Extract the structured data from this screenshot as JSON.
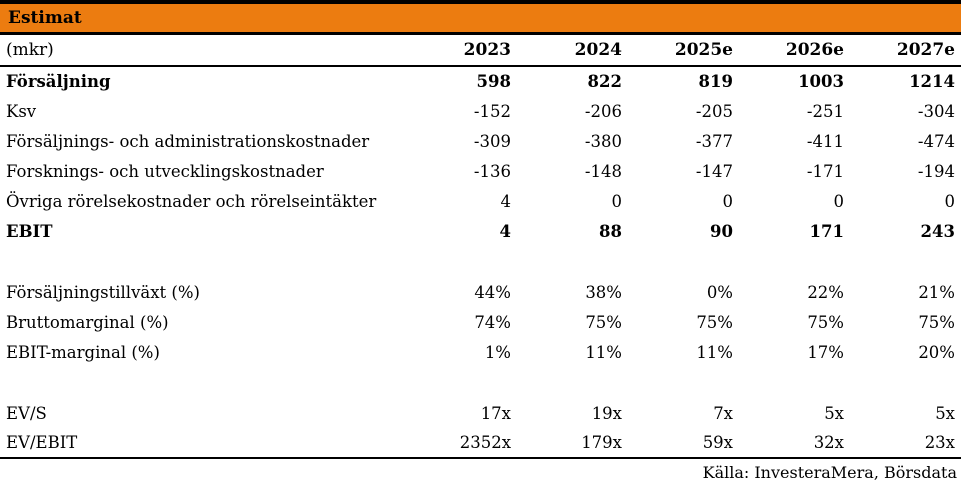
{
  "title_bar": {
    "title": "Estimat"
  },
  "colors": {
    "accent_orange": "#EC7C10",
    "rule_black": "#000000",
    "text": "#000000",
    "background": "#FFFFFF"
  },
  "table": {
    "unit_label": "(mkr)",
    "columns": [
      "2023",
      "2024",
      "2025e",
      "2026e",
      "2027e"
    ],
    "rows": [
      {
        "label": "Försäljning",
        "bold": true,
        "values": [
          "598",
          "822",
          "819",
          "1003",
          "1214"
        ]
      },
      {
        "label": "Ksv",
        "bold": false,
        "values": [
          "-152",
          "-206",
          "-205",
          "-251",
          "-304"
        ]
      },
      {
        "label": "Försäljnings- och administrationskostnader",
        "bold": false,
        "values": [
          "-309",
          "-380",
          "-377",
          "-411",
          "-474"
        ]
      },
      {
        "label": "Forsknings- och utvecklingskostnader",
        "bold": false,
        "values": [
          "-136",
          "-148",
          "-147",
          "-171",
          "-194"
        ]
      },
      {
        "label": "Övriga rörelsekostnader och rörelseintäkter",
        "bold": false,
        "values": [
          "4",
          "0",
          "0",
          "0",
          "0"
        ]
      },
      {
        "label": "EBIT",
        "bold": true,
        "values": [
          "4",
          "88",
          "90",
          "171",
          "243"
        ]
      },
      {
        "label": "Försäljningstillväxt (%)",
        "bold": false,
        "values": [
          "44%",
          "38%",
          "0%",
          "22%",
          "21%"
        ]
      },
      {
        "label": "Bruttomarginal (%)",
        "bold": false,
        "values": [
          "74%",
          "75%",
          "75%",
          "75%",
          "75%"
        ]
      },
      {
        "label": "EBIT-marginal (%)",
        "bold": false,
        "values": [
          "1%",
          "11%",
          "11%",
          "17%",
          "20%"
        ]
      },
      {
        "label": "EV/S",
        "bold": false,
        "values": [
          "17x",
          "19x",
          "7x",
          "5x",
          "5x"
        ]
      },
      {
        "label": "EV/EBIT",
        "bold": false,
        "values": [
          "2352x",
          "179x",
          "59x",
          "32x",
          "23x"
        ]
      }
    ]
  },
  "footer": {
    "source": "Källa: InvesteraMera, Börsdata"
  }
}
